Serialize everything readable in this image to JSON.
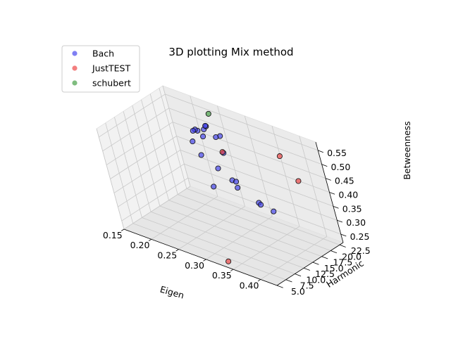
{
  "chart_data": {
    "type": "scatter",
    "title": "3D plotting Mix method",
    "xlabel": "Eigen",
    "ylabel": "Harmonic",
    "zlabel": "Betweenness",
    "xlim": [
      0.15,
      0.43
    ],
    "ylim": [
      5.0,
      23.5
    ],
    "zlim": [
      0.22,
      0.58
    ],
    "xticks": [
      "0.15",
      "0.20",
      "0.25",
      "0.30",
      "0.35",
      "0.40"
    ],
    "yticks": [
      "5.0",
      "7.5",
      "10.0",
      "12.5",
      "15.0",
      "17.5",
      "20.0",
      "22.5"
    ],
    "zticks": [
      "0.25",
      "0.30",
      "0.35",
      "0.40",
      "0.45",
      "0.50",
      "0.55"
    ],
    "grid": true,
    "legend_position": "top-left",
    "series": [
      {
        "name": "Bach",
        "color": "#3a3aec",
        "points": [
          {
            "x": 0.241,
            "y": 19.8,
            "z": 0.52
          },
          {
            "x": 0.23,
            "y": 19.5,
            "z": 0.51
          },
          {
            "x": 0.222,
            "y": 19.9,
            "z": 0.505
          },
          {
            "x": 0.219,
            "y": 19.7,
            "z": 0.5
          },
          {
            "x": 0.247,
            "y": 19.8,
            "z": 0.535
          },
          {
            "x": 0.245,
            "y": 19.9,
            "z": 0.535
          },
          {
            "x": 0.272,
            "y": 19.6,
            "z": 0.52
          },
          {
            "x": 0.263,
            "y": 19.6,
            "z": 0.51
          },
          {
            "x": 0.238,
            "y": 19.5,
            "z": 0.495
          },
          {
            "x": 0.268,
            "y": 19.8,
            "z": 0.455
          },
          {
            "x": 0.214,
            "y": 19.5,
            "z": 0.46
          },
          {
            "x": 0.225,
            "y": 19.4,
            "z": 0.42
          },
          {
            "x": 0.251,
            "y": 19.5,
            "z": 0.39
          },
          {
            "x": 0.274,
            "y": 19.4,
            "z": 0.365
          },
          {
            "x": 0.281,
            "y": 19.4,
            "z": 0.365
          },
          {
            "x": 0.279,
            "y": 19.6,
            "z": 0.34
          },
          {
            "x": 0.313,
            "y": 19.7,
            "z": 0.31
          },
          {
            "x": 0.316,
            "y": 19.7,
            "z": 0.305
          },
          {
            "x": 0.34,
            "y": 19.5,
            "z": 0.3
          },
          {
            "x": 0.243,
            "y": 18.2,
            "z": 0.33
          }
        ]
      },
      {
        "name": "JustTEST",
        "color": "#ec3a3a",
        "points": [
          {
            "x": 0.268,
            "y": 19.6,
            "z": 0.46
          },
          {
            "x": 0.372,
            "y": 20.8,
            "z": 0.51
          },
          {
            "x": 0.403,
            "y": 20.0,
            "z": 0.45
          },
          {
            "x": 0.33,
            "y": 6.7,
            "z": 0.22
          }
        ]
      },
      {
        "name": "schubert",
        "color": "#3a9a3a",
        "points": [
          {
            "x": 0.248,
            "y": 21.1,
            "z": 0.57
          }
        ]
      }
    ]
  }
}
